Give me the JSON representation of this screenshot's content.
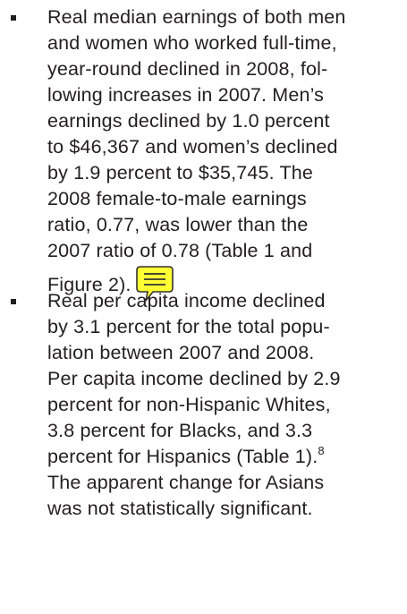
{
  "items": [
    {
      "lines": [
        "Real median earnings of both men",
        "and women who worked full-time,",
        "year-round declined in 2008, fol-",
        "lowing increases in 2007. Men’s",
        "earnings declined by 1.0 percent",
        "to $46,367 and women’s declined",
        "by 1.9 percent to $35,745. The",
        "2008 female-to-male earnings",
        "ratio, 0.77, was lower than the",
        "2007 ratio of 0.78 (Table 1 and",
        "Figure 2)."
      ]
    },
    {
      "lines": [
        "Real per capita income declined",
        "by 3.1 percent for the total popu-",
        "lation between 2007 and 2008.",
        "Per capita income declined by 2.9",
        "percent for non-Hispanic Whites,",
        "3.8 percent for Blacks, and 3.3",
        "percent for Hispanics (Table 1).",
        "The apparent change for Asians",
        "was not statistically significant."
      ],
      "footnote_line": 6,
      "footnote": "8"
    }
  ]
}
